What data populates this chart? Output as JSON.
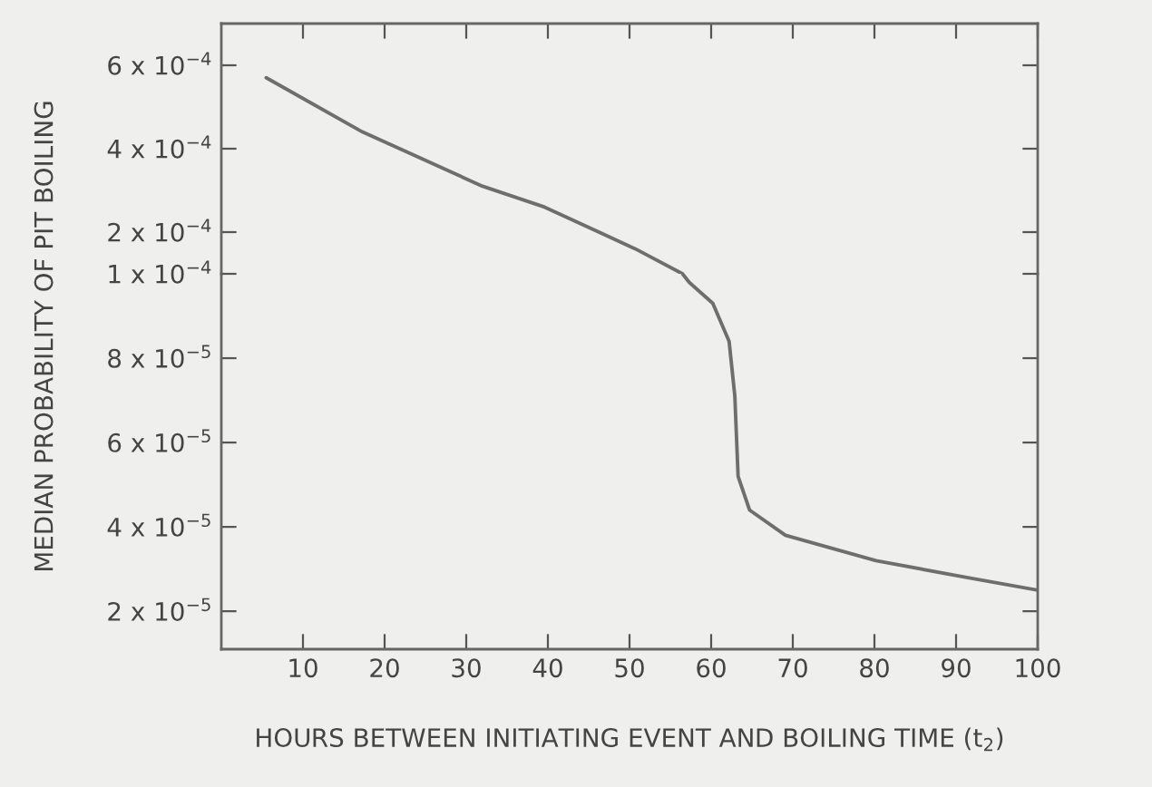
{
  "chart_data": [
    {
      "type": "line",
      "series": [
        {
          "color": "#6e6e6e",
          "x": [
            5.5,
            17.3,
            32,
            39.6,
            50.7,
            56.5
          ],
          "values": [
            0.00057,
            0.00044,
            0.00031,
            0.00026,
            0.00016,
            0.0001
          ]
        }
      ],
      "xlim": [
        0,
        100
      ],
      "xticks": [
        10,
        20,
        30,
        40,
        50,
        60,
        70,
        80,
        90,
        100
      ],
      "tick_labels": "y",
      "ylim": [
        0.0001,
        0.0007
      ],
      "yticks": [
        {
          "value": 0.0002,
          "label": "2 x 10$^{−4}$"
        },
        {
          "value": 0.0004,
          "label": "4 x 10$^{−4}$"
        },
        {
          "value": 0.0006,
          "label": "6 x 10$^{−4}$"
        }
      ],
      "grid": false,
      "legend": false,
      "marker": "none",
      "line_style": "solid"
    },
    {
      "type": "line",
      "xlabel": "HOURS BETWEEN INITIATING EVENT AND BOILING TIME (t$_{2}$)",
      "ylabel": "MEDIAN PROBABILITY OF PIT BOILING",
      "series": [
        {
          "color": "#6e6e6e",
          "x": [
            56.5,
            57.3,
            60.2,
            62.2,
            62.9,
            63.3,
            64.7,
            69.1,
            80.2,
            91.3,
            100
          ],
          "values": [
            0.0001,
            9.8e-05,
            9.3e-05,
            8.4e-05,
            7.1e-05,
            5.2e-05,
            4.4e-05,
            3.8e-05,
            3.2e-05,
            2.8e-05,
            2.5e-05
          ]
        }
      ],
      "xlim": [
        0,
        100
      ],
      "xticks": [
        10,
        20,
        30,
        40,
        50,
        60,
        70,
        80,
        90,
        100
      ],
      "ylim": [
        1.1e-05,
        0.0001
      ],
      "yticks": [
        {
          "value": 2e-05,
          "label": "2 x 10$^{−5}$"
        },
        {
          "value": 4e-05,
          "label": "4 x 10$^{−5}$"
        },
        {
          "value": 6e-05,
          "label": "6 x 10$^{−5}$"
        },
        {
          "value": 8e-05,
          "label": "8 x 10$^{−5}$"
        },
        {
          "value": 0.0001,
          "label": "1 x 10$^{−4}$"
        }
      ],
      "grid": false,
      "legend": false,
      "marker": "none",
      "line_style": "solid"
    }
  ]
}
